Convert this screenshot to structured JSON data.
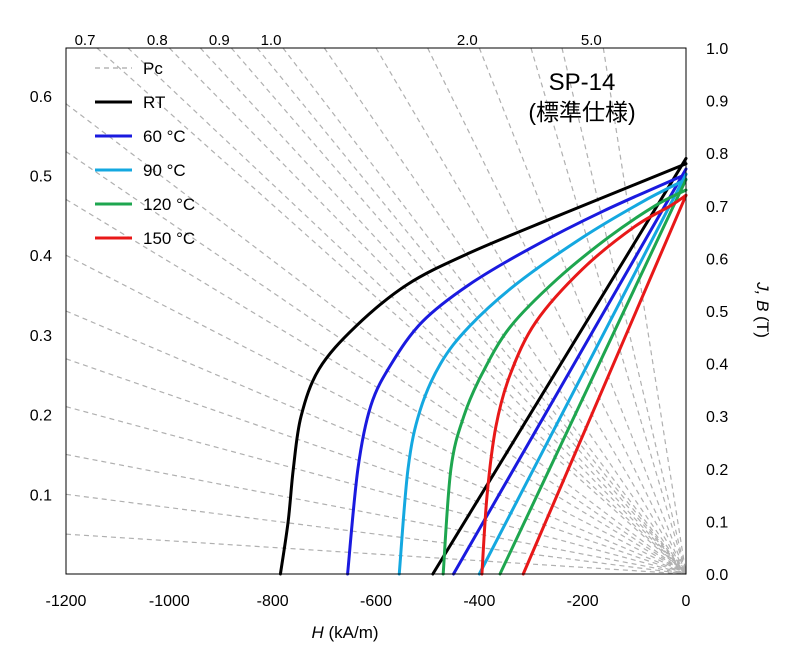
{
  "chart_data": {
    "type": "line",
    "title": "SP-14",
    "subtitle": "(標準仕様)",
    "xlabel_italic": "H",
    "xlabel_rest": " (kA/m)",
    "ylabel_italic": "J, B",
    "ylabel_rest": " (T)",
    "xlim": [
      -1200,
      0
    ],
    "ylim_right": [
      0.0,
      1.0
    ],
    "ylim_left": [
      0.0,
      0.66
    ],
    "x_ticks": [
      "-1200",
      "-1000",
      "-800",
      "-600",
      "-400",
      "-200",
      "0"
    ],
    "x_tick_values": [
      -1200,
      -1000,
      -800,
      -600,
      -400,
      -200,
      0
    ],
    "right_ticks": [
      "0.0",
      "0.1",
      "0.2",
      "0.3",
      "0.4",
      "0.5",
      "0.6",
      "0.7",
      "0.8",
      "0.9",
      "1.0"
    ],
    "right_tick_values": [
      0.0,
      0.1,
      0.2,
      0.3,
      0.4,
      0.5,
      0.6,
      0.7,
      0.8,
      0.9,
      1.0
    ],
    "left_ticks": [
      "0.1",
      "0.2",
      "0.3",
      "0.4",
      "0.5",
      "0.6"
    ],
    "left_tick_values": [
      0.1,
      0.2,
      0.3,
      0.4,
      0.5,
      0.6
    ],
    "pc_top_labels": [
      "0.7",
      "0.8",
      "0.9",
      "1.0",
      "2.0",
      "5.0"
    ],
    "pc_top_x": [
      -1140,
      -1000,
      -880,
      -780,
      -400,
      -160
    ],
    "pc_left_y": [
      0.05,
      0.1,
      0.15,
      0.21,
      0.27,
      0.33,
      0.4,
      0.47,
      0.53,
      0.59
    ],
    "pc_top_extra_x": [
      -1080,
      -940,
      -830,
      -700,
      -600,
      -500,
      -300,
      -240
    ],
    "series": [
      {
        "name": "Pc",
        "color": "#a6a6a6",
        "style": "dashed"
      },
      {
        "name": "RT",
        "color": "#000000",
        "style": "solid",
        "J": [
          [
            -785,
            0.0
          ],
          [
            -770,
            0.1
          ],
          [
            -760,
            0.2
          ],
          [
            -745,
            0.3
          ],
          [
            -710,
            0.39
          ],
          [
            -640,
            0.47
          ],
          [
            -540,
            0.55
          ],
          [
            -420,
            0.61
          ],
          [
            -250,
            0.68
          ],
          [
            -100,
            0.74
          ],
          [
            0,
            0.78
          ]
        ],
        "B": [
          [
            -490,
            0.0
          ],
          [
            0,
            0.79
          ]
        ]
      },
      {
        "name": "60 °C",
        "color": "#1a1adf",
        "style": "solid",
        "J": [
          [
            -655,
            0.0
          ],
          [
            -635,
            0.2
          ],
          [
            -610,
            0.32
          ],
          [
            -570,
            0.4
          ],
          [
            -510,
            0.48
          ],
          [
            -420,
            0.55
          ],
          [
            -300,
            0.62
          ],
          [
            -160,
            0.69
          ],
          [
            0,
            0.76
          ]
        ],
        "B": [
          [
            -450,
            0.0
          ],
          [
            0,
            0.77
          ]
        ]
      },
      {
        "name": "90 °C",
        "color": "#14a8e0",
        "style": "solid",
        "J": [
          [
            -555,
            0.0
          ],
          [
            -538,
            0.2
          ],
          [
            -515,
            0.31
          ],
          [
            -475,
            0.4
          ],
          [
            -420,
            0.47
          ],
          [
            -330,
            0.55
          ],
          [
            -200,
            0.64
          ],
          [
            -80,
            0.71
          ],
          [
            0,
            0.75
          ]
        ],
        "B": [
          [
            -400,
            0.0
          ],
          [
            0,
            0.76
          ]
        ]
      },
      {
        "name": "120 °C",
        "color": "#1ea64f",
        "style": "solid",
        "J": [
          [
            -470,
            0.0
          ],
          [
            -455,
            0.2
          ],
          [
            -430,
            0.3
          ],
          [
            -395,
            0.38
          ],
          [
            -340,
            0.47
          ],
          [
            -250,
            0.56
          ],
          [
            -150,
            0.64
          ],
          [
            -60,
            0.7
          ],
          [
            0,
            0.73
          ]
        ],
        "B": [
          [
            -360,
            0.0
          ],
          [
            0,
            0.75
          ]
        ]
      },
      {
        "name": "150 °C",
        "color": "#e81818",
        "style": "solid",
        "J": [
          [
            -395,
            0.0
          ],
          [
            -385,
            0.15
          ],
          [
            -368,
            0.28
          ],
          [
            -340,
            0.38
          ],
          [
            -290,
            0.48
          ],
          [
            -200,
            0.58
          ],
          [
            -100,
            0.66
          ],
          [
            -30,
            0.7
          ],
          [
            0,
            0.72
          ]
        ],
        "B": [
          [
            -315,
            0.0
          ],
          [
            0,
            0.72
          ]
        ]
      }
    ]
  }
}
